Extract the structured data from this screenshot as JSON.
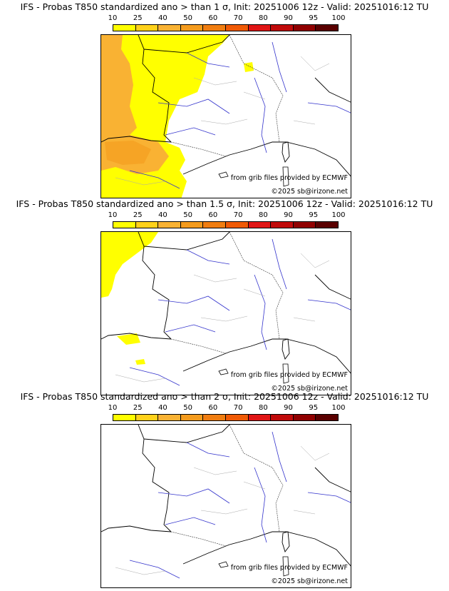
{
  "palette": [
    "#ffff00",
    "#ffd11a",
    "#f9b233",
    "#f49b1d",
    "#f07d10",
    "#f05a05",
    "#e01515",
    "#c00a0a",
    "#900000",
    "#5a0000"
  ],
  "colorbar_ticks": [
    "10",
    "25",
    "40",
    "50",
    "60",
    "70",
    "80",
    "90",
    "95",
    "100"
  ],
  "credits": {
    "provider": "from grib files provided by ECMWF",
    "copyright": "©2025 sb@irizone.net"
  },
  "panels": [
    {
      "title": "IFS - Probas T850  standardized ano > than 1 σ, Init: 20251006 12z - Valid: 20251016:12 TU"
    },
    {
      "title": "IFS - Probas T850  standardized ano > than 1.5 σ, Init: 20251006 12z - Valid: 20251016:12 TU"
    },
    {
      "title": "IFS - Probas T850  standardized ano > than 2 σ, Init: 20251006 12z - Valid: 20251016:12 TU"
    }
  ]
}
